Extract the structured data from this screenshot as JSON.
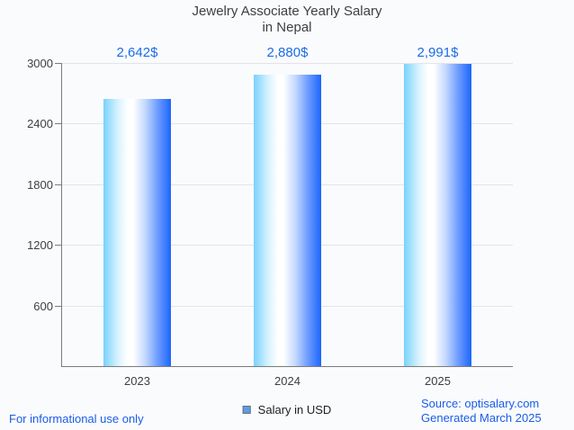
{
  "header": {
    "title_line1": "Jewelry Associate Yearly Salary",
    "title_line2": "in Nepal"
  },
  "legend": {
    "label": "Salary in USD",
    "swatch_fill": "#5c9ce6",
    "swatch_border": "#6b6f75"
  },
  "footer": {
    "disclaimer": "For informational use only",
    "source_line1": "Source: optisalary.com",
    "source_line2": "Generated March 2025"
  },
  "colors": {
    "background": "#fafbfd",
    "accent_blue": "#1a6ce8",
    "axis": "#7b7b7b",
    "gridline": "#e4e4e8",
    "text": "#3d3f42"
  },
  "chart_data": {
    "type": "bar",
    "title": "Jewelry Associate Yearly Salary in Nepal",
    "categories": [
      "2023",
      "2024",
      "2025"
    ],
    "values": [
      2642,
      2880,
      2991
    ],
    "value_labels": [
      "2,642$",
      "2,880$",
      "2,991$"
    ],
    "series_name": "Salary in USD",
    "xlabel": "",
    "ylabel": "",
    "ylim": [
      0,
      3000
    ],
    "yticks": [
      600,
      1200,
      1800,
      2400,
      3000
    ],
    "grid": true,
    "legend_position": "bottom",
    "bar_gradient": [
      "#79d2fc",
      "#ffffff",
      "#1b66fb"
    ],
    "value_label_color": "#1a6ce8"
  }
}
